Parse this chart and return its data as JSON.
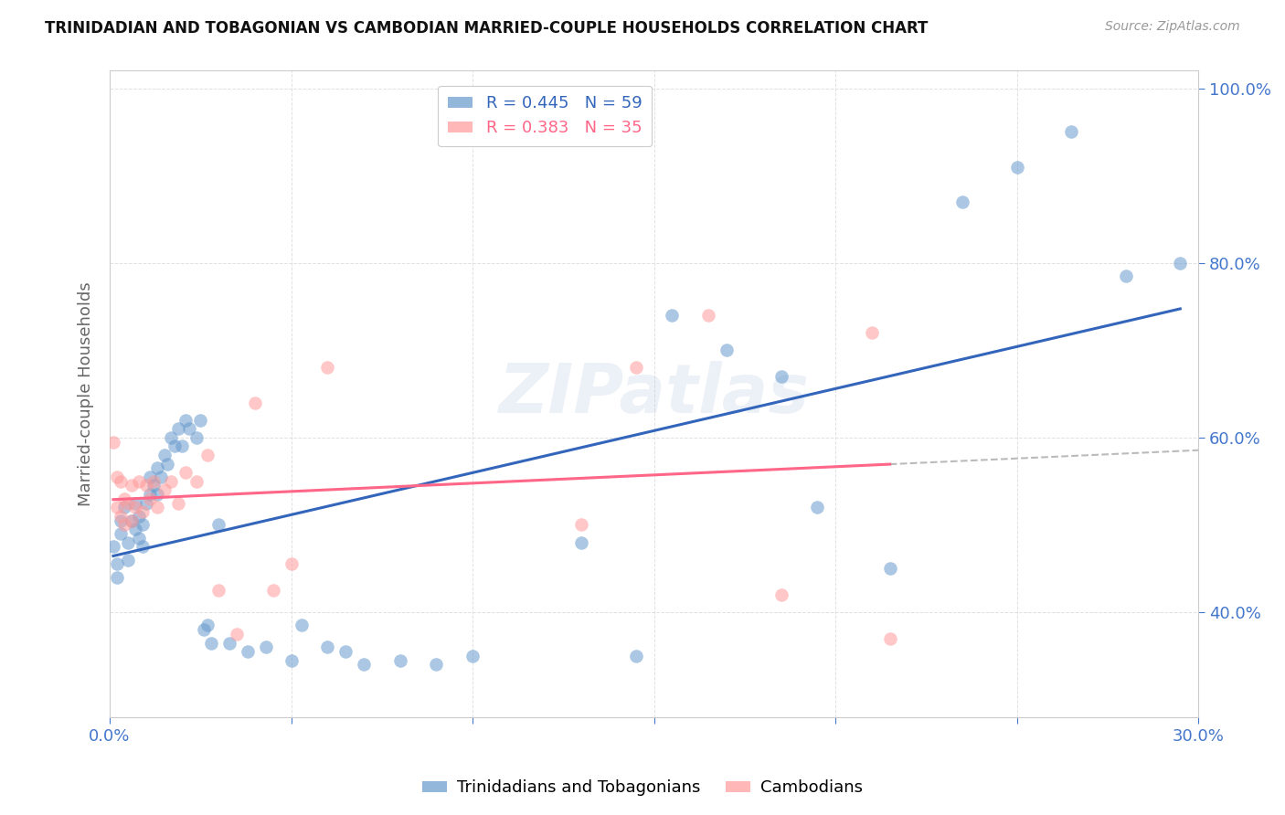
{
  "title": "TRINIDADIAN AND TOBAGONIAN VS CAMBODIAN MARRIED-COUPLE HOUSEHOLDS CORRELATION CHART",
  "source": "Source: ZipAtlas.com",
  "ylabel": "Married-couple Households",
  "xlim": [
    0.0,
    0.3
  ],
  "ylim": [
    0.28,
    1.02
  ],
  "blue_R": 0.445,
  "blue_N": 59,
  "pink_R": 0.383,
  "pink_N": 35,
  "blue_color": "#6699CC",
  "pink_color": "#FF9999",
  "blue_line_color": "#3366BB",
  "pink_line_color": "#FF6688",
  "axis_color": "#4477CC",
  "grid_color": "#DDDDDD",
  "background_color": "#FFFFFF",
  "watermark": "ZIPatlas",
  "blue_scatter_x": [
    0.001,
    0.002,
    0.002,
    0.003,
    0.003,
    0.004,
    0.005,
    0.005,
    0.006,
    0.007,
    0.007,
    0.008,
    0.008,
    0.009,
    0.009,
    0.01,
    0.011,
    0.011,
    0.012,
    0.013,
    0.013,
    0.014,
    0.015,
    0.016,
    0.017,
    0.018,
    0.019,
    0.02,
    0.021,
    0.022,
    0.024,
    0.025,
    0.026,
    0.027,
    0.028,
    0.03,
    0.033,
    0.038,
    0.043,
    0.05,
    0.053,
    0.06,
    0.065,
    0.07,
    0.08,
    0.09,
    0.1,
    0.13,
    0.145,
    0.155,
    0.17,
    0.185,
    0.195,
    0.215,
    0.235,
    0.25,
    0.265,
    0.28,
    0.295
  ],
  "blue_scatter_y": [
    0.475,
    0.455,
    0.44,
    0.505,
    0.49,
    0.52,
    0.48,
    0.46,
    0.505,
    0.495,
    0.525,
    0.51,
    0.485,
    0.5,
    0.475,
    0.525,
    0.555,
    0.535,
    0.545,
    0.535,
    0.565,
    0.555,
    0.58,
    0.57,
    0.6,
    0.59,
    0.61,
    0.59,
    0.62,
    0.61,
    0.6,
    0.62,
    0.38,
    0.385,
    0.365,
    0.5,
    0.365,
    0.355,
    0.36,
    0.345,
    0.385,
    0.36,
    0.355,
    0.34,
    0.345,
    0.34,
    0.35,
    0.48,
    0.35,
    0.74,
    0.7,
    0.67,
    0.52,
    0.45,
    0.87,
    0.91,
    0.95,
    0.785,
    0.8
  ],
  "pink_scatter_x": [
    0.001,
    0.002,
    0.002,
    0.003,
    0.003,
    0.004,
    0.004,
    0.005,
    0.006,
    0.006,
    0.007,
    0.008,
    0.009,
    0.01,
    0.011,
    0.012,
    0.013,
    0.015,
    0.017,
    0.019,
    0.021,
    0.024,
    0.027,
    0.03,
    0.035,
    0.04,
    0.045,
    0.05,
    0.06,
    0.13,
    0.145,
    0.165,
    0.185,
    0.21,
    0.215
  ],
  "pink_scatter_y": [
    0.595,
    0.555,
    0.52,
    0.55,
    0.51,
    0.53,
    0.5,
    0.525,
    0.545,
    0.505,
    0.52,
    0.55,
    0.515,
    0.545,
    0.53,
    0.55,
    0.52,
    0.54,
    0.55,
    0.525,
    0.56,
    0.55,
    0.58,
    0.425,
    0.375,
    0.64,
    0.425,
    0.455,
    0.68,
    0.5,
    0.68,
    0.74,
    0.42,
    0.72,
    0.37
  ]
}
